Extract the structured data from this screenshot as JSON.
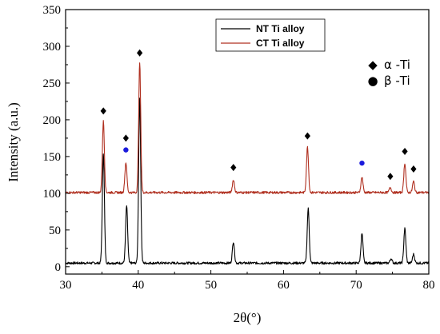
{
  "chart_data": {
    "type": "line",
    "title": "",
    "xlabel": "2θ(°)",
    "ylabel": "Intensity (a.u.)",
    "xlim": [
      30,
      80
    ],
    "ylim": [
      -10,
      350
    ],
    "xticks": [
      30,
      40,
      50,
      60,
      70,
      80
    ],
    "yticks": [
      0,
      50,
      100,
      150,
      200,
      250,
      300,
      350
    ],
    "grid": false,
    "legend_position": "top-center",
    "series": [
      {
        "name": "NT Ti alloy",
        "color": "#000000",
        "baseline": 5,
        "peaks": [
          {
            "x": 35.2,
            "y": 155
          },
          {
            "x": 38.4,
            "y": 83
          },
          {
            "x": 40.2,
            "y": 228
          },
          {
            "x": 53.1,
            "y": 34
          },
          {
            "x": 63.4,
            "y": 79
          },
          {
            "x": 70.8,
            "y": 45
          },
          {
            "x": 74.8,
            "y": 11
          },
          {
            "x": 76.7,
            "y": 52
          },
          {
            "x": 77.9,
            "y": 17
          }
        ]
      },
      {
        "name": "CT Ti alloy",
        "color": "#b03020",
        "baseline": 101,
        "peaks": [
          {
            "x": 35.2,
            "y": 198
          },
          {
            "x": 38.3,
            "y": 142
          },
          {
            "x": 40.2,
            "y": 278
          },
          {
            "x": 53.1,
            "y": 118
          },
          {
            "x": 63.3,
            "y": 163
          },
          {
            "x": 70.8,
            "y": 122
          },
          {
            "x": 74.7,
            "y": 108
          },
          {
            "x": 76.7,
            "y": 141
          },
          {
            "x": 77.9,
            "y": 116
          }
        ]
      }
    ],
    "phase_legend": [
      {
        "symbol": "◆",
        "label": "α -Ti",
        "color": "#000000"
      },
      {
        "symbol": "●",
        "label": "β -Ti",
        "color": "#1a1adc"
      }
    ],
    "markers": [
      {
        "phase": "alpha",
        "x": 35.2,
        "y": 212
      },
      {
        "phase": "alpha",
        "x": 38.3,
        "y": 175
      },
      {
        "phase": "alpha",
        "x": 40.2,
        "y": 291
      },
      {
        "phase": "alpha",
        "x": 53.1,
        "y": 135
      },
      {
        "phase": "alpha",
        "x": 63.3,
        "y": 178
      },
      {
        "phase": "alpha",
        "x": 74.7,
        "y": 123
      },
      {
        "phase": "alpha",
        "x": 76.7,
        "y": 157
      },
      {
        "phase": "alpha",
        "x": 77.9,
        "y": 133
      },
      {
        "phase": "beta",
        "x": 38.3,
        "y": 159
      },
      {
        "phase": "beta",
        "x": 70.8,
        "y": 141
      }
    ]
  }
}
